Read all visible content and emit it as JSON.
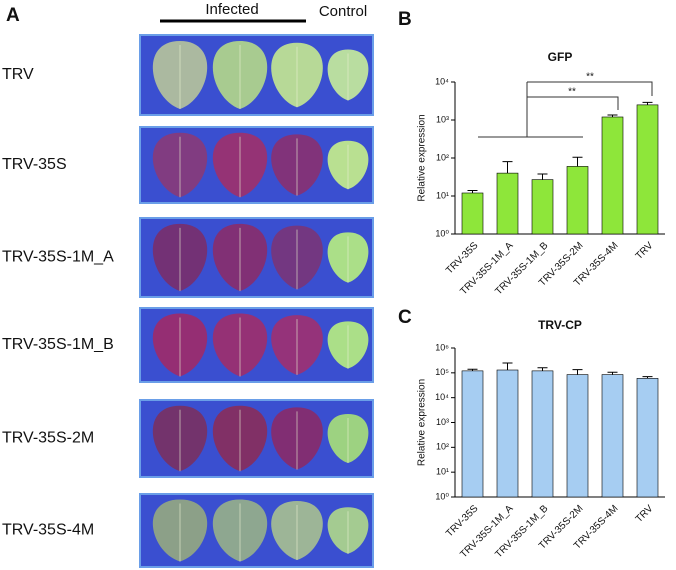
{
  "panel_a": {
    "label": "A",
    "infected": "Infected",
    "control": "Control",
    "rows": [
      "TRV",
      "TRV-35S",
      "TRV-35S-1M_A",
      "TRV-35S-1M_B",
      "TRV-35S-2M",
      "TRV-35S-4M"
    ]
  },
  "chart_data": [
    {
      "type": "bar",
      "panel_label": "B",
      "title": "GFP",
      "y_label": "Relative expression",
      "log_scale": true,
      "categories": [
        "TRV-35S",
        "TRV-35S-1M_A",
        "TRV-35S-1M_B",
        "TRV-35S-2M",
        "TRV-35S-4M",
        "TRV"
      ],
      "values": [
        12,
        40,
        27,
        60,
        1200,
        2500
      ],
      "errors": [
        2,
        40,
        11,
        45,
        150,
        400
      ],
      "color": "#8ee63a",
      "ylim": [
        1,
        10000
      ],
      "yticks": [
        {
          "value": 1,
          "label": "10⁰"
        },
        {
          "value": 10,
          "label": "10¹"
        },
        {
          "value": 100,
          "label": "10²"
        },
        {
          "value": 1000,
          "label": "10³"
        },
        {
          "value": 10000,
          "label": "10⁴"
        }
      ],
      "annotations": [
        "**",
        "**"
      ]
    },
    {
      "type": "bar",
      "panel_label": "C",
      "title": "TRV-CP",
      "y_label": "Relative expression",
      "log_scale": true,
      "categories": [
        "TRV-35S",
        "TRV-35S-1M_A",
        "TRV-35S-1M_B",
        "TRV-35S-2M",
        "TRV-35S-4M",
        "TRV"
      ],
      "values": [
        120000,
        130000,
        120000,
        85000,
        85000,
        60000
      ],
      "errors": [
        20000,
        120000,
        40000,
        50000,
        20000,
        10000
      ],
      "color": "#a6cdf2",
      "ylim": [
        1,
        1000000
      ],
      "yticks": [
        {
          "value": 1,
          "label": "10⁰"
        },
        {
          "value": 10,
          "label": "10¹"
        },
        {
          "value": 100,
          "label": "10²"
        },
        {
          "value": 1000,
          "label": "10³"
        },
        {
          "value": 10000,
          "label": "10⁴"
        },
        {
          "value": 100000,
          "label": "10⁵"
        },
        {
          "value": 1000000,
          "label": "10⁶"
        }
      ]
    }
  ]
}
